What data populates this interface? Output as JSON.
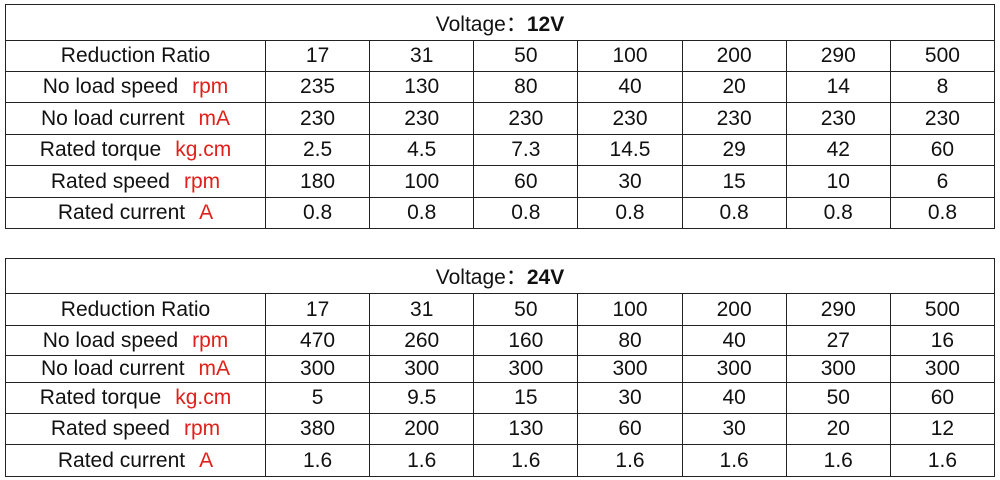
{
  "tables": [
    {
      "title": {
        "label": "Voltage：",
        "voltage": "12V"
      },
      "header": {
        "label": "Reduction Ratio",
        "values": [
          "17",
          "31",
          "50",
          "100",
          "200",
          "290",
          "500"
        ]
      },
      "rows": [
        {
          "label": "No load speed",
          "unit": "rpm",
          "values": [
            "235",
            "130",
            "80",
            "40",
            "20",
            "14",
            "8"
          ]
        },
        {
          "label": "No load current",
          "unit": "mA",
          "values": [
            "230",
            "230",
            "230",
            "230",
            "230",
            "230",
            "230"
          ]
        },
        {
          "label": "Rated torque",
          "unit": "kg.cm",
          "values": [
            "2.5",
            "4.5",
            "7.3",
            "14.5",
            "29",
            "42",
            "60"
          ]
        },
        {
          "label": "Rated speed",
          "unit": "rpm",
          "values": [
            "180",
            "100",
            "60",
            "30",
            "15",
            "10",
            "6"
          ]
        },
        {
          "label": "Rated current",
          "unit": "A",
          "values": [
            "0.8",
            "0.8",
            "0.8",
            "0.8",
            "0.8",
            "0.8",
            "0.8"
          ]
        }
      ]
    },
    {
      "title": {
        "label": "Voltage：",
        "voltage": "24V"
      },
      "header": {
        "label": "Reduction Ratio",
        "values": [
          "17",
          "31",
          "50",
          "100",
          "200",
          "290",
          "500"
        ]
      },
      "rows": [
        {
          "label": "No load speed",
          "unit": "rpm",
          "values": [
            "470",
            "260",
            "160",
            "80",
            "40",
            "27",
            "16"
          ]
        },
        {
          "label": "No load current",
          "unit": "mA",
          "values": [
            "300",
            "300",
            "300",
            "300",
            "300",
            "300",
            "300"
          ]
        },
        {
          "label": "Rated torque",
          "unit": "kg.cm",
          "values": [
            "5",
            "9.5",
            "15",
            "30",
            "40",
            "50",
            "60"
          ]
        },
        {
          "label": "Rated speed",
          "unit": "rpm",
          "values": [
            "380",
            "200",
            "130",
            "60",
            "30",
            "20",
            "12"
          ]
        },
        {
          "label": "Rated current",
          "unit": "A",
          "values": [
            "1.6",
            "1.6",
            "1.6",
            "1.6",
            "1.6",
            "1.6",
            "1.6"
          ]
        }
      ]
    }
  ]
}
